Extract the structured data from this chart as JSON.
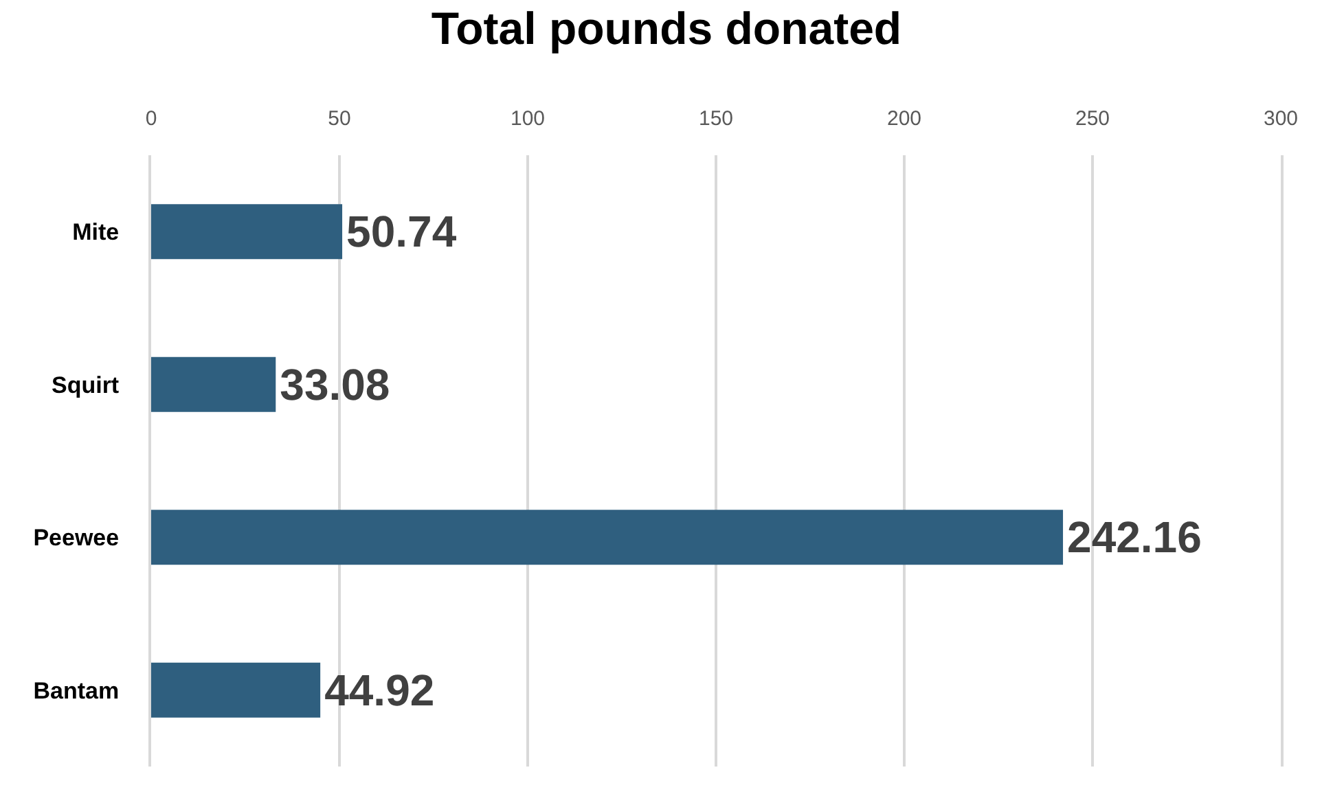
{
  "chart_data": {
    "type": "bar",
    "orientation": "horizontal",
    "title": "Total pounds donated",
    "categories": [
      "Mite",
      "Squirt",
      "Peewee",
      "Bantam"
    ],
    "values": [
      50.74,
      33.08,
      242.16,
      44.92
    ],
    "color": "#2f5f7f",
    "xlim": [
      0,
      300
    ],
    "xticks": [
      0,
      50,
      100,
      150,
      200,
      250,
      300
    ],
    "grid": "x",
    "data_labels": true
  }
}
